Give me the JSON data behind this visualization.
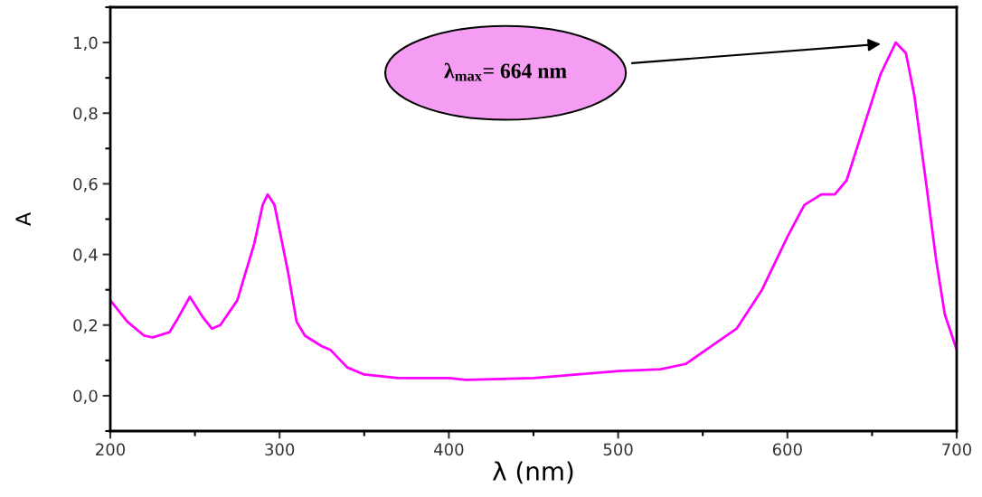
{
  "chart_data": {
    "type": "line",
    "xlabel": "λ (nm)",
    "ylabel": "A",
    "x": [
      200,
      210,
      220,
      225,
      235,
      240,
      247,
      255,
      260,
      265,
      275,
      285,
      290,
      293,
      297,
      305,
      310,
      315,
      325,
      330,
      340,
      350,
      370,
      400,
      410,
      450,
      500,
      525,
      540,
      555,
      570,
      585,
      600,
      610,
      620,
      628,
      635,
      645,
      655,
      664,
      670,
      675,
      682,
      688,
      693,
      700
    ],
    "series": [
      {
        "color": "#ff00ff",
        "values": [
          0.27,
          0.21,
          0.17,
          0.165,
          0.18,
          0.22,
          0.28,
          0.22,
          0.19,
          0.2,
          0.27,
          0.43,
          0.54,
          0.57,
          0.54,
          0.35,
          0.21,
          0.17,
          0.14,
          0.13,
          0.08,
          0.06,
          0.05,
          0.05,
          0.045,
          0.05,
          0.07,
          0.075,
          0.09,
          0.14,
          0.19,
          0.3,
          0.45,
          0.54,
          0.57,
          0.57,
          0.61,
          0.76,
          0.91,
          1.0,
          0.97,
          0.85,
          0.6,
          0.38,
          0.23,
          0.13
        ]
      }
    ],
    "xlim": [
      200,
      700
    ],
    "xticks": [
      200,
      300,
      400,
      500,
      600,
      700
    ],
    "ylim": [
      -0.1,
      1.1
    ],
    "yticks": [
      {
        "value": 0.0,
        "label": "0,0"
      },
      {
        "value": 0.2,
        "label": "0,2"
      },
      {
        "value": 0.4,
        "label": "0,4"
      },
      {
        "value": 0.6,
        "label": "0,6"
      },
      {
        "value": 0.8,
        "label": "0,8"
      },
      {
        "value": 1.0,
        "label": "1,0"
      }
    ],
    "annotations": [
      "λ$_{max}$= 664 nm"
    ],
    "grid": false,
    "legend": false,
    "marker": "none",
    "line_style": "solid"
  }
}
